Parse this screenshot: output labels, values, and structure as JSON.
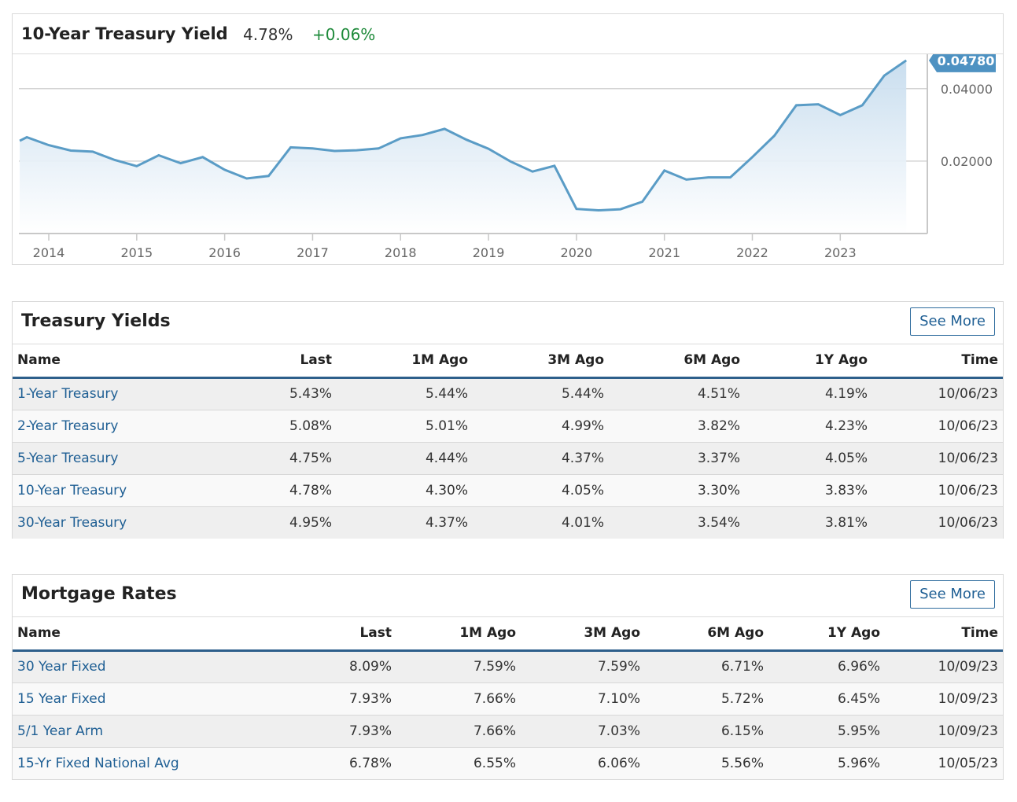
{
  "chart_panel": {
    "title": "10-Year Treasury Yield",
    "last": "4.78%",
    "change": "+0.06%",
    "price_tag": "0.04780",
    "colors": {
      "line": "#5a9cc6",
      "fill_top": "#c6dcee",
      "change_positive": "#1e8a3a",
      "price_tag_bg": "#4e92c2"
    }
  },
  "chart_data": {
    "type": "area",
    "title": "10-Year Treasury Yield",
    "xlabel": "",
    "ylabel": "",
    "x_ticks": [
      "2014",
      "2015",
      "2016",
      "2017",
      "2018",
      "2019",
      "2020",
      "2021",
      "2022",
      "2023"
    ],
    "y_ticks": [
      "0.04000",
      "0.02000"
    ],
    "ylim": [
      0,
      0.0495
    ],
    "xlim": [
      2013.66,
      2023.99
    ],
    "grid": true,
    "last_value": 0.0478,
    "series": [
      {
        "x": [
          2013.67,
          2013.75,
          2014.0,
          2014.25,
          2014.5,
          2014.75,
          2015.0,
          2015.25,
          2015.5,
          2015.75,
          2016.0,
          2016.25,
          2016.5,
          2016.75,
          2017.0,
          2017.25,
          2017.5,
          2017.75,
          2018.0,
          2018.25,
          2018.5,
          2018.75,
          2019.0,
          2019.25,
          2019.5,
          2019.75,
          2020.0,
          2020.25,
          2020.5,
          2020.75,
          2021.0,
          2021.25,
          2021.5,
          2021.75,
          2022.0,
          2022.25,
          2022.5,
          2022.75,
          2023.0,
          2023.25,
          2023.5,
          2023.75
        ],
        "values": [
          0.0256,
          0.0266,
          0.0244,
          0.0229,
          0.0226,
          0.0203,
          0.0186,
          0.0216,
          0.0194,
          0.0211,
          0.0176,
          0.0152,
          0.0159,
          0.0238,
          0.0235,
          0.0228,
          0.023,
          0.0235,
          0.0263,
          0.0272,
          0.0289,
          0.0259,
          0.0234,
          0.0199,
          0.0171,
          0.0187,
          0.0068,
          0.0064,
          0.0067,
          0.0088,
          0.0174,
          0.0149,
          0.0155,
          0.0155,
          0.0211,
          0.027,
          0.0354,
          0.0357,
          0.0327,
          0.0354,
          0.0436,
          0.0478
        ]
      }
    ]
  },
  "treasury": {
    "title": "Treasury Yields",
    "see_more": "See More",
    "columns": [
      "Name",
      "Last",
      "1M Ago",
      "3M Ago",
      "6M Ago",
      "1Y Ago",
      "Time"
    ],
    "rows": [
      [
        "1-Year Treasury",
        "5.43%",
        "5.44%",
        "5.44%",
        "4.51%",
        "4.19%",
        "10/06/23"
      ],
      [
        "2-Year Treasury",
        "5.08%",
        "5.01%",
        "4.99%",
        "3.82%",
        "4.23%",
        "10/06/23"
      ],
      [
        "5-Year Treasury",
        "4.75%",
        "4.44%",
        "4.37%",
        "3.37%",
        "4.05%",
        "10/06/23"
      ],
      [
        "10-Year Treasury",
        "4.78%",
        "4.30%",
        "4.05%",
        "3.30%",
        "3.83%",
        "10/06/23"
      ],
      [
        "30-Year Treasury",
        "4.95%",
        "4.37%",
        "4.01%",
        "3.54%",
        "3.81%",
        "10/06/23"
      ]
    ]
  },
  "mortgage": {
    "title": "Mortgage Rates",
    "see_more": "See More",
    "columns": [
      "Name",
      "Last",
      "1M Ago",
      "3M Ago",
      "6M Ago",
      "1Y Ago",
      "Time"
    ],
    "rows": [
      [
        "30 Year Fixed",
        "8.09%",
        "7.59%",
        "7.59%",
        "6.71%",
        "6.96%",
        "10/09/23"
      ],
      [
        "15 Year Fixed",
        "7.93%",
        "7.66%",
        "7.10%",
        "5.72%",
        "6.45%",
        "10/09/23"
      ],
      [
        "5/1 Year Arm",
        "7.93%",
        "7.66%",
        "7.03%",
        "6.15%",
        "5.95%",
        "10/09/23"
      ],
      [
        "15-Yr Fixed National Avg",
        "6.78%",
        "6.55%",
        "6.06%",
        "5.56%",
        "5.96%",
        "10/05/23"
      ]
    ]
  }
}
